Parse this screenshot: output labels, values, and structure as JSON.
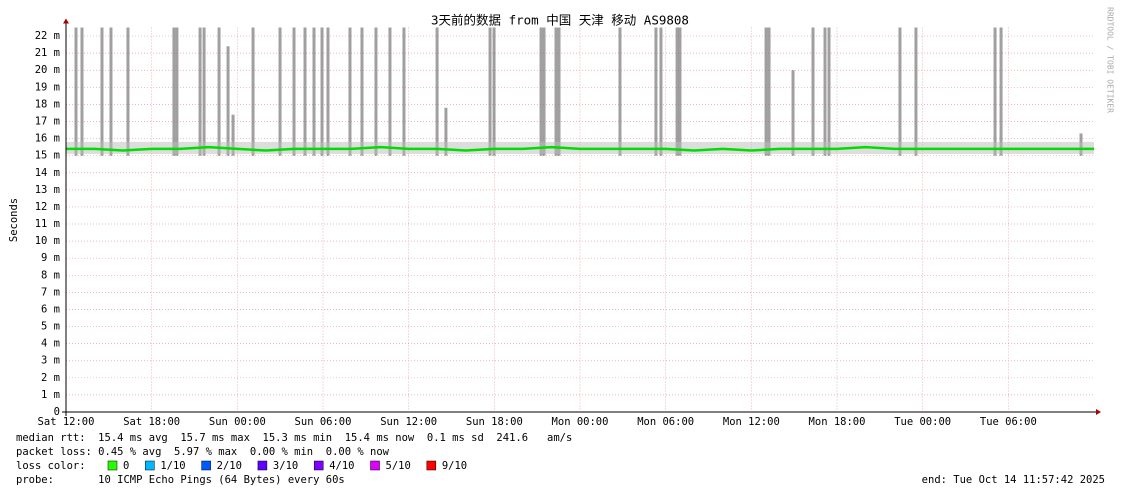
{
  "chart_data": {
    "type": "line",
    "title": "3天前的数据 from 中国 天津 移动 AS9808",
    "y_label": "Seconds",
    "watermark": "RRDTOOL / TOBI OETIKER",
    "xlim": [
      0,
      72
    ],
    "xticks": [
      {
        "value": 0,
        "label": "Sat 12:00"
      },
      {
        "value": 6,
        "label": "Sat 18:00"
      },
      {
        "value": 12,
        "label": "Sun 00:00"
      },
      {
        "value": 18,
        "label": "Sun 06:00"
      },
      {
        "value": 24,
        "label": "Sun 12:00"
      },
      {
        "value": 30,
        "label": "Sun 18:00"
      },
      {
        "value": 36,
        "label": "Mon 00:00"
      },
      {
        "value": 42,
        "label": "Mon 06:00"
      },
      {
        "value": 48,
        "label": "Mon 12:00"
      },
      {
        "value": 54,
        "label": "Mon 18:00"
      },
      {
        "value": 60,
        "label": "Tue 00:00"
      },
      {
        "value": 66,
        "label": "Tue 06:00"
      }
    ],
    "ylim": [
      0,
      22.5
    ],
    "yticks": [
      0,
      {
        "value": 1,
        "label": "1 m"
      },
      {
        "value": 2,
        "label": "2 m"
      },
      {
        "value": 3,
        "label": "3 m"
      },
      {
        "value": 4,
        "label": "4 m"
      },
      {
        "value": 5,
        "label": "5 m"
      },
      {
        "value": 6,
        "label": "6 m"
      },
      {
        "value": 7,
        "label": "7 m"
      },
      {
        "value": 8,
        "label": "8 m"
      },
      {
        "value": 9,
        "label": "9 m"
      },
      {
        "value": 10,
        "label": "10 m"
      },
      {
        "value": 11,
        "label": "11 m"
      },
      {
        "value": 12,
        "label": "12 m"
      },
      {
        "value": 13,
        "label": "13 m"
      },
      {
        "value": 14,
        "label": "14 m"
      },
      {
        "value": 15,
        "label": "15 m"
      },
      {
        "value": 16,
        "label": "16 m"
      },
      {
        "value": 17,
        "label": "17 m"
      },
      {
        "value": 18,
        "label": "18 m"
      },
      {
        "value": 19,
        "label": "19 m"
      },
      {
        "value": 20,
        "label": "20 m"
      },
      {
        "value": 21,
        "label": "21 m"
      },
      {
        "value": 22,
        "label": "22 m"
      }
    ],
    "grid": true,
    "smoke": {
      "color": "#808080",
      "base": 15,
      "x": [
        0.7,
        1.12,
        2.52,
        3.15,
        4.34,
        7.56,
        7.77,
        9.39,
        9.67,
        10.72,
        11.35,
        11.7,
        13.1,
        14.99,
        15.97,
        16.74,
        17.37,
        17.93,
        18.35,
        19.89,
        20.73,
        21.71,
        22.69,
        23.67,
        25.99,
        26.61,
        29.7,
        29.98,
        33.27,
        33.48,
        34.32,
        34.53,
        38.8,
        41.32,
        41.67,
        42.8,
        43.0,
        49.03,
        49.24,
        50.92,
        52.32,
        53.16,
        53.44,
        58.41,
        59.53,
        65.07,
        65.49,
        71.09
      ],
      "values": [
        22.5,
        22.5,
        22.5,
        22.5,
        22.5,
        22.5,
        22.5,
        22.5,
        22.5,
        22.5,
        21.4,
        17.4,
        22.5,
        22.5,
        22.5,
        22.5,
        22.5,
        22.5,
        22.5,
        22.5,
        22.5,
        22.5,
        22.5,
        22.5,
        22.5,
        17.8,
        22.5,
        22.5,
        22.5,
        22.5,
        22.5,
        22.5,
        22.5,
        22.5,
        22.5,
        22.5,
        22.5,
        22.5,
        22.5,
        20.0,
        22.5,
        22.5,
        22.5,
        22.5,
        22.5,
        22.5,
        22.5,
        16.3
      ]
    },
    "series": [
      {
        "name": "median rtt",
        "color": "#00dd00",
        "x": [
          0,
          2,
          4,
          6,
          8,
          10,
          12,
          14,
          16,
          18,
          20,
          22,
          24,
          26,
          28,
          30,
          32,
          34,
          36,
          38,
          40,
          42,
          44,
          46,
          48,
          50,
          52,
          54,
          56,
          58,
          60,
          62,
          64,
          66,
          68,
          70,
          72
        ],
        "values": [
          15.4,
          15.4,
          15.3,
          15.4,
          15.4,
          15.5,
          15.4,
          15.3,
          15.4,
          15.4,
          15.4,
          15.5,
          15.4,
          15.4,
          15.3,
          15.4,
          15.4,
          15.5,
          15.4,
          15.4,
          15.4,
          15.4,
          15.3,
          15.4,
          15.3,
          15.4,
          15.4,
          15.4,
          15.5,
          15.4,
          15.4,
          15.4,
          15.4,
          15.4,
          15.4,
          15.4,
          15.4
        ]
      }
    ],
    "stats": [
      "median rtt:  15.4 ms avg  15.7 ms max  15.3 ms min  15.4 ms now  0.1 ms sd  241.6   am/s",
      "packet loss: 0.45 % avg  5.97 % max  0.00 % min  0.00 % now"
    ],
    "loss_label": "loss color:",
    "loss_colors": [
      {
        "label": "0",
        "color": "#26ff00"
      },
      {
        "label": "1/10",
        "color": "#00b8ff"
      },
      {
        "label": "2/10",
        "color": "#0059ff"
      },
      {
        "label": "3/10",
        "color": "#5e00ff"
      },
      {
        "label": "4/10",
        "color": "#7e00ff"
      },
      {
        "label": "5/10",
        "color": "#dd00ff"
      },
      {
        "label": "9/10",
        "color": "#ff0000"
      }
    ],
    "probe": "probe:       10 ICMP Echo Pings (64 Bytes) every 60s",
    "end": "end: Tue Oct 14 11:57:42 2025"
  }
}
